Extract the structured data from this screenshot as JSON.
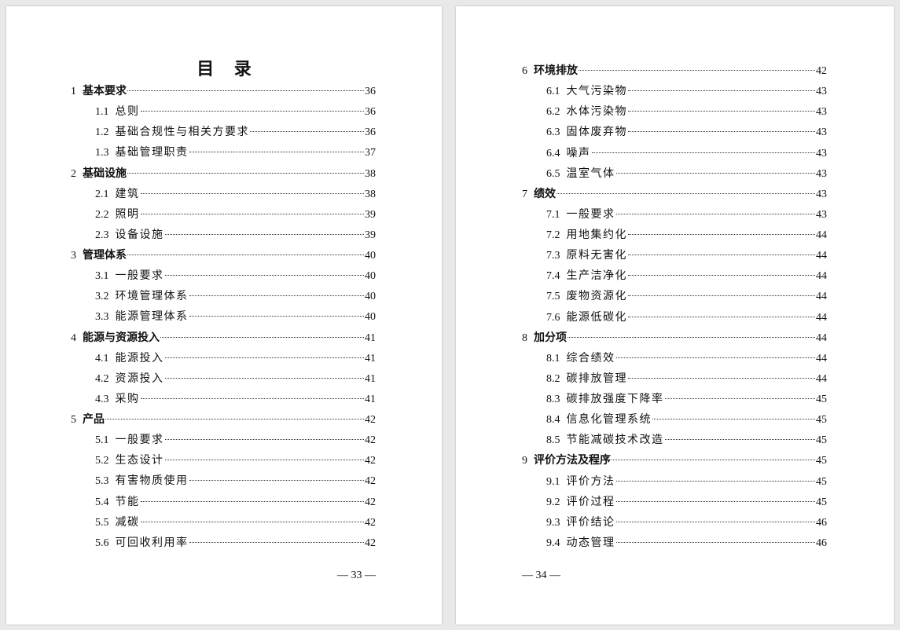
{
  "pages": [
    {
      "title": "目 录",
      "page_number": "— 33 —",
      "entries": [
        {
          "level": 1,
          "num": "1",
          "title": "基本要求",
          "page": "36"
        },
        {
          "level": 2,
          "num": "1.1",
          "title": "总则",
          "page": "36"
        },
        {
          "level": 2,
          "num": "1.2",
          "title": "基础合规性与相关方要求",
          "page": "36"
        },
        {
          "level": 2,
          "num": "1.3",
          "title": "基础管理职责",
          "page": "37"
        },
        {
          "level": 1,
          "num": "2",
          "title": "基础设施",
          "page": "38"
        },
        {
          "level": 2,
          "num": "2.1",
          "title": "建筑",
          "page": "38"
        },
        {
          "level": 2,
          "num": "2.2",
          "title": "照明",
          "page": "39"
        },
        {
          "level": 2,
          "num": "2.3",
          "title": "设备设施",
          "page": "39"
        },
        {
          "level": 1,
          "num": "3",
          "title": "管理体系",
          "page": "40"
        },
        {
          "level": 2,
          "num": "3.1",
          "title": "一般要求",
          "page": "40"
        },
        {
          "level": 2,
          "num": "3.2",
          "title": "环境管理体系",
          "page": "40"
        },
        {
          "level": 2,
          "num": "3.3",
          "title": "能源管理体系",
          "page": "40"
        },
        {
          "level": 1,
          "num": "4",
          "title": "能源与资源投入",
          "page": "41"
        },
        {
          "level": 2,
          "num": "4.1",
          "title": "能源投入",
          "page": "41"
        },
        {
          "level": 2,
          "num": "4.2",
          "title": "资源投入",
          "page": "41"
        },
        {
          "level": 2,
          "num": "4.3",
          "title": "采购",
          "page": "41"
        },
        {
          "level": 1,
          "num": "5",
          "title": "产品",
          "page": "42"
        },
        {
          "level": 2,
          "num": "5.1",
          "title": "一般要求",
          "page": "42"
        },
        {
          "level": 2,
          "num": "5.2",
          "title": "生态设计",
          "page": "42"
        },
        {
          "level": 2,
          "num": "5.3",
          "title": "有害物质使用",
          "page": "42"
        },
        {
          "level": 2,
          "num": "5.4",
          "title": "节能",
          "page": "42"
        },
        {
          "level": 2,
          "num": "5.5",
          "title": "减碳",
          "page": "42"
        },
        {
          "level": 2,
          "num": "5.6",
          "title": "可回收利用率",
          "page": "42"
        }
      ]
    },
    {
      "title": "",
      "page_number": "— 34 —",
      "entries": [
        {
          "level": 1,
          "num": "6",
          "title": "环境排放",
          "page": "42"
        },
        {
          "level": 2,
          "num": "6.1",
          "title": "大气污染物",
          "page": "43"
        },
        {
          "level": 2,
          "num": "6.2",
          "title": "水体污染物",
          "page": "43"
        },
        {
          "level": 2,
          "num": "6.3",
          "title": "固体废弃物",
          "page": "43"
        },
        {
          "level": 2,
          "num": "6.4",
          "title": "噪声",
          "page": "43"
        },
        {
          "level": 2,
          "num": "6.5",
          "title": "温室气体",
          "page": "43"
        },
        {
          "level": 1,
          "num": "7",
          "title": "绩效",
          "page": "43"
        },
        {
          "level": 2,
          "num": "7.1",
          "title": "一般要求",
          "page": "43"
        },
        {
          "level": 2,
          "num": "7.2",
          "title": "用地集约化",
          "page": "44"
        },
        {
          "level": 2,
          "num": "7.3",
          "title": "原料无害化",
          "page": "44"
        },
        {
          "level": 2,
          "num": "7.4",
          "title": "生产洁净化",
          "page": "44"
        },
        {
          "level": 2,
          "num": "7.5",
          "title": "废物资源化",
          "page": "44"
        },
        {
          "level": 2,
          "num": "7.6",
          "title": "能源低碳化",
          "page": "44"
        },
        {
          "level": 1,
          "num": "8",
          "title": "加分项",
          "page": "44"
        },
        {
          "level": 2,
          "num": "8.1",
          "title": "综合绩效",
          "page": "44"
        },
        {
          "level": 2,
          "num": "8.2",
          "title": "碳排放管理",
          "page": "44"
        },
        {
          "level": 2,
          "num": "8.3",
          "title": "碳排放强度下降率",
          "page": "45"
        },
        {
          "level": 2,
          "num": "8.4",
          "title": "信息化管理系统",
          "page": "45"
        },
        {
          "level": 2,
          "num": "8.5",
          "title": "节能减碳技术改造",
          "page": "45"
        },
        {
          "level": 1,
          "num": "9",
          "title": "评价方法及程序",
          "page": "45"
        },
        {
          "level": 2,
          "num": "9.1",
          "title": "评价方法",
          "page": "45"
        },
        {
          "level": 2,
          "num": "9.2",
          "title": "评价过程",
          "page": "45"
        },
        {
          "level": 2,
          "num": "9.3",
          "title": "评价结论",
          "page": "46"
        },
        {
          "level": 2,
          "num": "9.4",
          "title": "动态管理",
          "page": "46"
        }
      ]
    }
  ]
}
